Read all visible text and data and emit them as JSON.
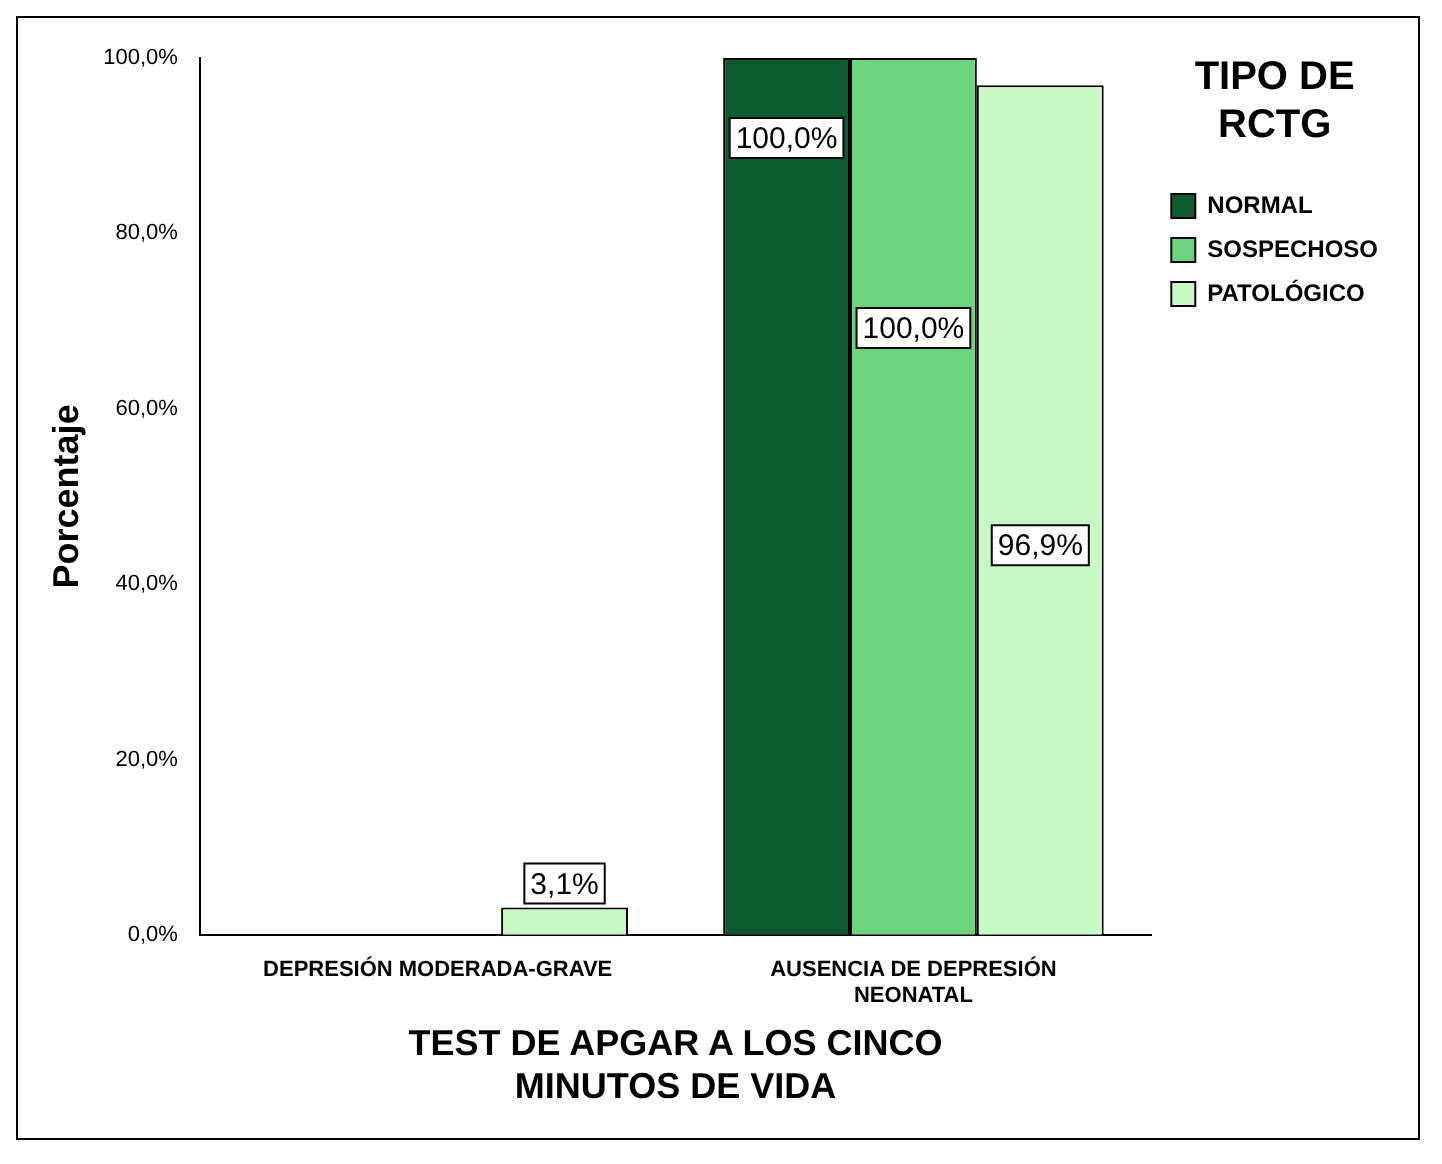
{
  "chart_data": {
    "type": "bar",
    "xlabel": "TEST DE APGAR A LOS CINCO MINUTOS DE VIDA",
    "ylabel": "Porcentaje",
    "legend_title": "TIPO DE RCTG",
    "legend": "right",
    "categories": [
      "DEPRESIÓN MODERADA-GRAVE",
      "AUSENCIA DE DEPRESIÓN NEONATAL"
    ],
    "series": [
      {
        "name": "NORMAL",
        "color": "#0e5c2e",
        "values": [
          0,
          100
        ],
        "value_labels": [
          null,
          "100,0%"
        ]
      },
      {
        "name": "SOSPECHOSO",
        "color": "#6cd47f",
        "values": [
          0,
          100
        ],
        "value_labels": [
          null,
          "100,0%"
        ]
      },
      {
        "name": "PATOLÓGICO",
        "color": "#c8f8c4",
        "values": [
          3.1,
          96.9
        ],
        "value_labels": [
          "3,1%",
          "96,9%"
        ]
      }
    ],
    "ylim": [
      0,
      100
    ],
    "yticks": [
      {
        "value": 0,
        "label": "0,0%"
      },
      {
        "value": 20,
        "label": "20,0%"
      },
      {
        "value": 40,
        "label": "40,0%"
      },
      {
        "value": 60,
        "label": "60,0%"
      },
      {
        "value": 80,
        "label": "80,0%"
      },
      {
        "value": 100,
        "label": "100,0%"
      }
    ],
    "grid": false
  }
}
